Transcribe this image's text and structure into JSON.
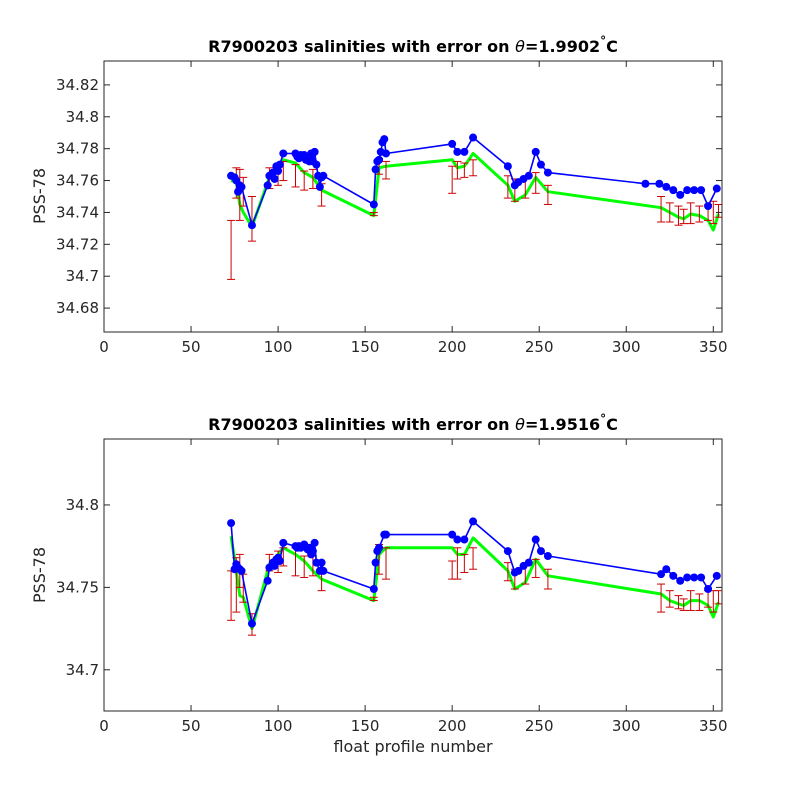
{
  "chart_data": [
    {
      "type": "line",
      "title_prefix": "R7900203 salinities with error on ",
      "title_theta": "θ",
      "title_value": "=1.9902",
      "title_degree": "°",
      "title_unit": "C",
      "ylabel": "PSS-78",
      "xlabel": "",
      "xlim": [
        0,
        355
      ],
      "ylim": [
        34.665,
        34.835
      ],
      "xticks": [
        0,
        50,
        100,
        150,
        200,
        250,
        300,
        350
      ],
      "yticks": [
        34.68,
        34.7,
        34.72,
        34.74,
        34.76,
        34.78,
        34.8,
        34.82
      ],
      "ytick_labels": [
        "34.68",
        "34.7",
        "34.72",
        "34.74",
        "34.76",
        "34.78",
        "34.8",
        "34.82"
      ],
      "colors": {
        "float": "#0000ff",
        "mapped": "#00ff00",
        "error": "#cc0000"
      },
      "float_salinity": {
        "x": [
          73,
          75,
          76,
          77,
          78,
          79,
          85,
          94,
          95,
          97,
          98,
          99,
          100,
          101,
          103,
          110,
          111,
          112,
          113,
          114,
          115,
          116,
          117,
          118,
          119,
          120,
          121,
          122,
          123,
          124,
          125,
          126,
          155,
          156,
          157,
          158,
          159,
          160,
          161,
          162,
          200,
          203,
          207,
          212,
          232,
          236,
          238,
          241,
          244,
          248,
          251,
          255,
          311,
          319,
          323,
          327,
          331,
          335,
          339,
          343,
          347,
          352
        ],
        "y": [
          34.763,
          34.762,
          34.76,
          34.753,
          34.757,
          34.756,
          34.732,
          34.757,
          34.763,
          34.765,
          34.761,
          34.769,
          34.766,
          34.77,
          34.777,
          34.777,
          34.775,
          34.774,
          34.776,
          34.775,
          34.776,
          34.773,
          34.775,
          34.772,
          34.777,
          34.772,
          34.778,
          34.77,
          34.763,
          34.756,
          34.762,
          34.763,
          34.745,
          34.767,
          34.772,
          34.773,
          34.778,
          34.784,
          34.786,
          34.777,
          34.783,
          34.778,
          34.778,
          34.787,
          34.769,
          34.757,
          34.759,
          34.761,
          34.763,
          34.778,
          34.77,
          34.765,
          34.758,
          34.758,
          34.756,
          34.754,
          34.751,
          34.754,
          34.754,
          34.754,
          34.744,
          34.755
        ]
      },
      "mapped_salinity": {
        "x": [
          73,
          76,
          78,
          80,
          85,
          95,
          100,
          103,
          110,
          115,
          120,
          125,
          155,
          158,
          162,
          200,
          203,
          207,
          212,
          232,
          236,
          242,
          248,
          255,
          320,
          325,
          330,
          333,
          337,
          342,
          347,
          350,
          353
        ],
        "y": [
          34.76,
          34.759,
          34.745,
          34.74,
          34.731,
          34.762,
          34.77,
          34.773,
          34.771,
          34.765,
          34.762,
          34.754,
          34.738,
          34.768,
          34.769,
          34.773,
          34.768,
          34.769,
          34.777,
          34.757,
          34.747,
          34.751,
          34.762,
          34.753,
          34.743,
          34.74,
          34.737,
          34.736,
          34.739,
          34.738,
          34.735,
          34.729,
          34.739
        ],
        "err_low": [
          34.698,
          34.749,
          34.735,
          34.744,
          34.722,
          34.755,
          34.757,
          34.76,
          34.756,
          34.754,
          34.755,
          34.744,
          34.738,
          34.764,
          34.761,
          34.752,
          34.761,
          34.762,
          34.763,
          34.749,
          34.747,
          34.749,
          34.752,
          34.745,
          34.734,
          34.734,
          34.732,
          34.733,
          34.733,
          34.734,
          34.735,
          34.733,
          34.737
        ],
        "err_high": [
          34.735,
          34.768,
          34.767,
          34.762,
          34.75,
          34.768,
          34.769,
          34.772,
          34.77,
          34.766,
          34.767,
          34.758,
          34.74,
          34.774,
          34.772,
          34.769,
          34.772,
          34.771,
          34.773,
          34.763,
          34.761,
          34.762,
          34.765,
          34.757,
          34.75,
          34.746,
          34.744,
          34.742,
          34.746,
          34.744,
          34.745,
          34.747,
          34.745
        ]
      }
    },
    {
      "type": "line",
      "title_prefix": "R7900203 salinities with error on ",
      "title_theta": "θ",
      "title_value": "=1.9516",
      "title_degree": "°",
      "title_unit": "C",
      "ylabel": "PSS-78",
      "xlabel": "float profile number",
      "xlim": [
        0,
        355
      ],
      "ylim": [
        34.675,
        34.84
      ],
      "xticks": [
        0,
        50,
        100,
        150,
        200,
        250,
        300,
        350
      ],
      "yticks": [
        34.7,
        34.75,
        34.8
      ],
      "ytick_labels": [
        "34.7",
        "34.75",
        "34.8"
      ],
      "colors": {
        "float": "#0000ff",
        "mapped": "#00ff00",
        "error": "#cc0000"
      },
      "float_salinity": {
        "x": [
          73,
          75,
          76,
          77,
          78,
          79,
          85,
          94,
          95,
          97,
          98,
          99,
          100,
          101,
          103,
          110,
          111,
          112,
          113,
          115,
          117,
          118,
          119,
          120,
          121,
          122,
          124,
          125,
          126,
          155,
          156,
          157,
          158,
          161,
          162,
          200,
          203,
          207,
          212,
          232,
          236,
          238,
          241,
          244,
          248,
          251,
          255,
          320,
          323,
          327,
          331,
          335,
          339,
          343,
          347,
          352
        ],
        "y": [
          34.789,
          34.761,
          34.764,
          34.762,
          34.761,
          34.76,
          34.728,
          34.754,
          34.762,
          34.765,
          34.763,
          34.767,
          34.768,
          34.766,
          34.777,
          34.775,
          34.774,
          34.775,
          34.774,
          34.776,
          34.773,
          34.774,
          34.77,
          34.772,
          34.777,
          34.765,
          34.76,
          34.765,
          34.76,
          34.749,
          34.765,
          34.772,
          34.774,
          34.782,
          34.782,
          34.782,
          34.779,
          34.779,
          34.79,
          34.772,
          34.759,
          34.76,
          34.763,
          34.765,
          34.779,
          34.772,
          34.769,
          34.758,
          34.761,
          34.757,
          34.754,
          34.756,
          34.756,
          34.756,
          34.749,
          34.757
        ]
      },
      "mapped_salinity": {
        "x": [
          73,
          76,
          78,
          80,
          85,
          95,
          100,
          103,
          110,
          115,
          120,
          125,
          155,
          158,
          162,
          200,
          203,
          207,
          212,
          232,
          236,
          242,
          248,
          255,
          320,
          325,
          330,
          333,
          337,
          342,
          347,
          350,
          353
        ],
        "y": [
          34.781,
          34.76,
          34.745,
          34.744,
          34.725,
          34.764,
          34.77,
          34.774,
          34.77,
          34.766,
          34.76,
          34.755,
          34.742,
          34.77,
          34.774,
          34.774,
          34.77,
          34.77,
          34.78,
          34.76,
          34.749,
          34.753,
          34.767,
          34.757,
          34.746,
          34.742,
          34.74,
          34.739,
          34.742,
          34.742,
          34.739,
          34.732,
          34.741
        ],
        "err_low": [
          34.73,
          34.735,
          34.75,
          34.741,
          34.721,
          34.76,
          34.759,
          34.763,
          34.757,
          34.756,
          34.757,
          34.748,
          34.742,
          34.758,
          34.755,
          34.755,
          34.755,
          34.759,
          34.761,
          34.754,
          34.749,
          34.752,
          34.756,
          34.749,
          34.735,
          34.738,
          34.737,
          34.736,
          34.736,
          34.736,
          34.738,
          34.735,
          34.74
        ],
        "err_high": [
          34.76,
          34.768,
          34.77,
          34.758,
          34.734,
          34.77,
          34.772,
          34.774,
          34.774,
          34.769,
          34.769,
          34.76,
          34.744,
          34.776,
          34.774,
          34.766,
          34.774,
          34.77,
          34.774,
          34.765,
          34.761,
          34.763,
          34.767,
          34.761,
          34.752,
          34.748,
          34.745,
          34.743,
          34.748,
          34.746,
          34.748,
          34.748,
          34.748
        ]
      }
    }
  ]
}
